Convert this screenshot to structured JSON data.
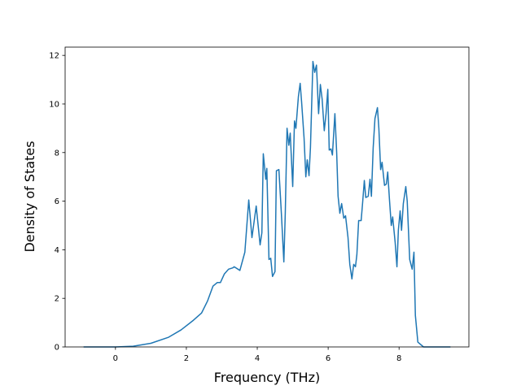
{
  "chart_data": {
    "type": "line",
    "x_label": "Frequency (THz)",
    "y_label": "Density of States",
    "x": [
      -0.9,
      0,
      0.5,
      1.0,
      1.5,
      1.85,
      2.2,
      2.43,
      2.6,
      2.75,
      2.87,
      2.96,
      3.07,
      3.19,
      3.3,
      3.35,
      3.51,
      3.65,
      3.76,
      3.85,
      3.97,
      4.08,
      4.13,
      4.17,
      4.24,
      4.27,
      4.33,
      4.38,
      4.43,
      4.5,
      4.54,
      4.61,
      4.68,
      4.75,
      4.79,
      4.84,
      4.89,
      4.93,
      5.0,
      5.05,
      5.09,
      5.16,
      5.21,
      5.25,
      5.32,
      5.37,
      5.41,
      5.46,
      5.5,
      5.57,
      5.62,
      5.67,
      5.73,
      5.78,
      5.83,
      5.89,
      5.94,
      5.99,
      6.03,
      6.08,
      6.12,
      6.19,
      6.24,
      6.28,
      6.33,
      6.38,
      6.44,
      6.49,
      6.56,
      6.61,
      6.67,
      6.72,
      6.77,
      6.81,
      6.86,
      6.93,
      6.97,
      7.02,
      7.06,
      7.13,
      7.18,
      7.22,
      7.27,
      7.32,
      7.39,
      7.43,
      7.48,
      7.52,
      7.59,
      7.64,
      7.68,
      7.73,
      7.78,
      7.82,
      7.89,
      7.94,
      7.98,
      8.03,
      8.07,
      8.12,
      8.19,
      8.23,
      8.3,
      8.37,
      8.42,
      8.46,
      8.53,
      8.69,
      9.45
    ],
    "y": [
      0,
      0,
      0.03,
      0.15,
      0.4,
      0.7,
      1.1,
      1.4,
      1.9,
      2.5,
      2.65,
      2.65,
      3.0,
      3.2,
      3.25,
      3.3,
      3.15,
      3.9,
      6.05,
      4.5,
      5.8,
      4.2,
      4.7,
      7.95,
      6.9,
      7.35,
      3.6,
      3.65,
      2.9,
      3.1,
      7.25,
      7.3,
      5.5,
      3.5,
      5.5,
      9.0,
      8.3,
      8.8,
      6.6,
      9.3,
      9.0,
      10.3,
      10.85,
      10.1,
      8.6,
      7.0,
      7.7,
      7.05,
      8.2,
      11.75,
      11.3,
      11.6,
      9.6,
      10.8,
      10.2,
      8.9,
      9.6,
      10.6,
      8.1,
      8.15,
      7.9,
      9.6,
      8.0,
      6.2,
      5.5,
      5.9,
      5.3,
      5.4,
      4.5,
      3.4,
      2.8,
      3.4,
      3.3,
      3.8,
      5.2,
      5.2,
      5.9,
      6.85,
      6.15,
      6.2,
      6.9,
      6.2,
      8.2,
      9.4,
      9.85,
      9.0,
      7.3,
      7.6,
      6.65,
      6.7,
      7.2,
      6.05,
      5.0,
      5.35,
      4.3,
      3.3,
      4.8,
      5.6,
      4.8,
      5.9,
      6.6,
      6.0,
      3.6,
      3.2,
      3.9,
      1.3,
      0.2,
      0,
      0
    ],
    "color": "#1f77b4",
    "xlim": [
      -1.42,
      9.97
    ],
    "xticks": [
      0,
      2,
      4,
      6,
      8
    ],
    "ylim": [
      0,
      12.34
    ],
    "yticks": [
      0,
      2,
      4,
      6,
      8,
      10,
      12
    ]
  }
}
